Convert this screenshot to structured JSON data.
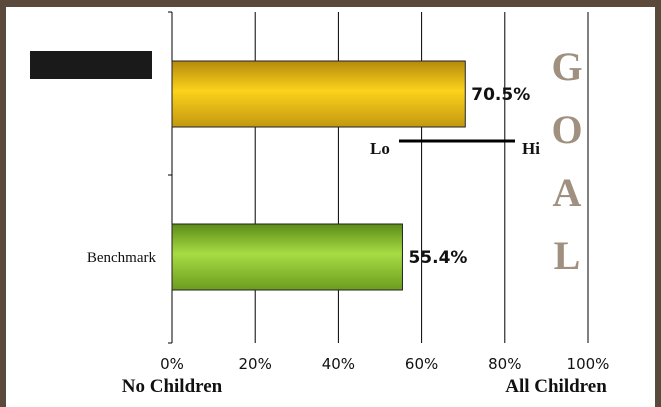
{
  "chart_data": {
    "type": "bar",
    "orientation": "horizontal",
    "categories": [
      "",
      "Benchmark"
    ],
    "values": [
      70.5,
      55.4
    ],
    "value_labels": [
      "70.5%",
      "55.4%"
    ],
    "bar_colors": [
      "#f5c518",
      "#8ccc2e"
    ],
    "xlim": [
      0,
      100
    ],
    "x_ticks": [
      "0%",
      "20%",
      "40%",
      "60%",
      "80%",
      "100%"
    ],
    "x_end_labels": {
      "left": "No Children",
      "right": "All Children"
    },
    "grid": true,
    "range_marker": {
      "low_label": "Lo",
      "high_label": "Hi"
    },
    "side_label": [
      "G",
      "O",
      "A",
      "L"
    ]
  },
  "colors": {
    "frame": "#5b4a3c",
    "goal_letters": "#a09080",
    "redaction": "#1a1a1a"
  }
}
